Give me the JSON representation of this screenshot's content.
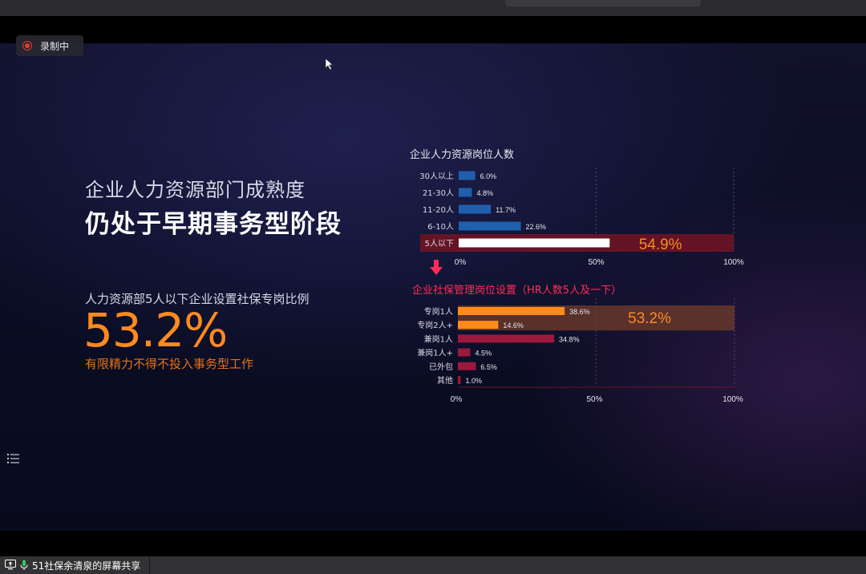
{
  "recording": {
    "label": "录制中"
  },
  "slide": {
    "subtitle": "企业人力资源部门成熟度",
    "headline": "仍处于早期事务型阶段",
    "stat_description": "人力资源部5人以下企业设置社保专岗比例",
    "stat_value": "53.2%",
    "stat_note": "有限精力不得不投入事务型工作"
  },
  "chart_data": [
    {
      "type": "bar",
      "orientation": "horizontal",
      "title": "企业人力资源岗位人数",
      "categories": [
        "30人以上",
        "21-30人",
        "11-20人",
        "6-10人",
        "5人以下"
      ],
      "values": [
        6.0,
        4.8,
        11.7,
        22.6,
        54.9
      ],
      "value_labels": [
        "6.0%",
        "4.8%",
        "11.7%",
        "22.6%",
        "54.9%"
      ],
      "xlim": [
        0,
        100
      ],
      "ticks": [
        "0%",
        "50%",
        "100%"
      ],
      "highlight": {
        "category": "5人以下",
        "label": "54.9%"
      },
      "colors": {
        "bar": "#1f5fae",
        "highlight_bar": "#ffffff",
        "highlight_band": "#6e1424",
        "highlight_text": "#ff8a1e"
      }
    },
    {
      "type": "bar",
      "orientation": "horizontal",
      "title": "企业社保管理岗位设置（HR人数5人及一下）",
      "categories": [
        "专岗1人",
        "专岗2人+",
        "兼岗1人",
        "兼岗1人+",
        "已外包",
        "其他"
      ],
      "values": [
        38.6,
        14.6,
        34.8,
        4.5,
        6.5,
        1.0
      ],
      "value_labels": [
        "38.6%",
        "14.6%",
        "34.8%",
        "4.5%",
        "6.5%",
        "1.0%"
      ],
      "xlim": [
        0,
        100
      ],
      "ticks": [
        "0%",
        "50%",
        "100%"
      ],
      "highlight": {
        "categories": [
          "专岗1人",
          "专岗2人+"
        ],
        "label": "53.2%"
      },
      "colors": {
        "orange_bar": "#ff8c1a",
        "crimson_bar": "#9a1a3c",
        "highlight_band": "#6b3a2a",
        "highlight_text": "#ff8a1e",
        "title": "#ff2d55"
      }
    }
  ],
  "taskbar": {
    "share_label": "51社保余清泉的屏幕共享"
  },
  "icons": {
    "recording": "record-icon",
    "cursor": "cursor-icon",
    "menu": "list-menu-icon",
    "arrow": "down-arrow-icon",
    "share": "screen-share-icon",
    "mic": "microphone-icon"
  }
}
